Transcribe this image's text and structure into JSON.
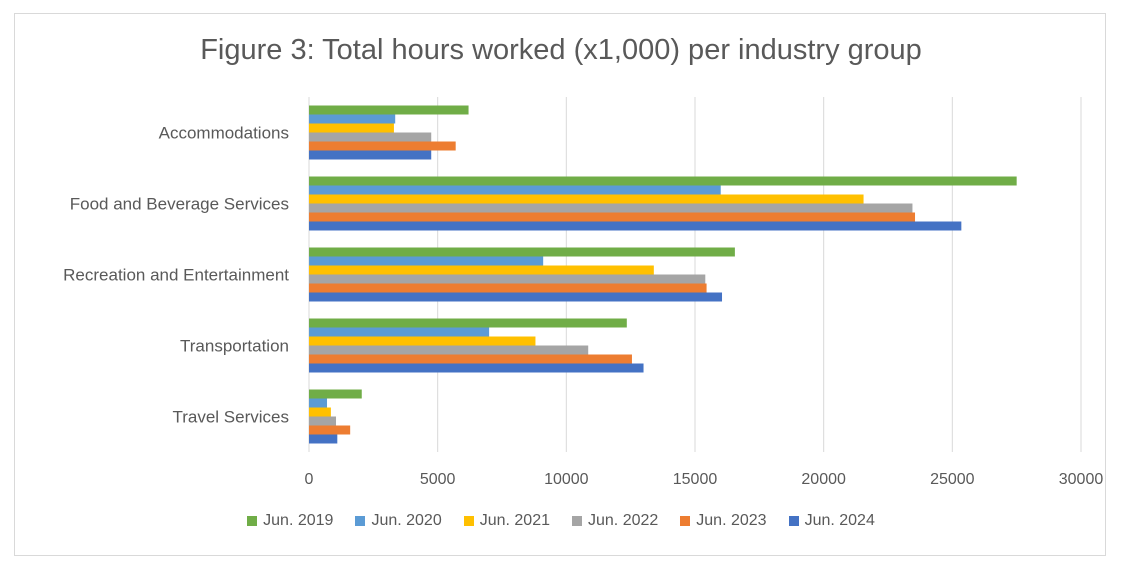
{
  "chart_data": {
    "type": "bar",
    "orientation": "horizontal",
    "title": "Figure 3: Total hours worked (x1,000) per industry group",
    "xlabel": "",
    "ylabel": "",
    "xlim": [
      0,
      30000
    ],
    "xticks": [
      "0",
      "5000",
      "10000",
      "15000",
      "20000",
      "25000",
      "30000"
    ],
    "grid": true,
    "legend_position": "bottom",
    "categories": [
      "Accommodations",
      "Food and Beverage Services",
      "Recreation and Entertainment",
      "Transportation",
      "Travel Services"
    ],
    "series": [
      {
        "name": "Jun. 2019",
        "color": "#70ad47",
        "values": [
          6200,
          27500,
          16550,
          12350,
          2050
        ]
      },
      {
        "name": "Jun. 2020",
        "color": "#5b9bd5",
        "values": [
          3350,
          16000,
          9100,
          7000,
          700
        ]
      },
      {
        "name": "Jun. 2021",
        "color": "#ffc000",
        "values": [
          3300,
          21550,
          13400,
          8800,
          850
        ]
      },
      {
        "name": "Jun. 2022",
        "color": "#a5a5a5",
        "values": [
          4750,
          23450,
          15400,
          10850,
          1050
        ]
      },
      {
        "name": "Jun. 2023",
        "color": "#ed7d31",
        "values": [
          5700,
          23550,
          15450,
          12550,
          1600
        ]
      },
      {
        "name": "Jun. 2024",
        "color": "#4472c4",
        "values": [
          4750,
          25350,
          16050,
          13000,
          1100
        ]
      }
    ]
  }
}
